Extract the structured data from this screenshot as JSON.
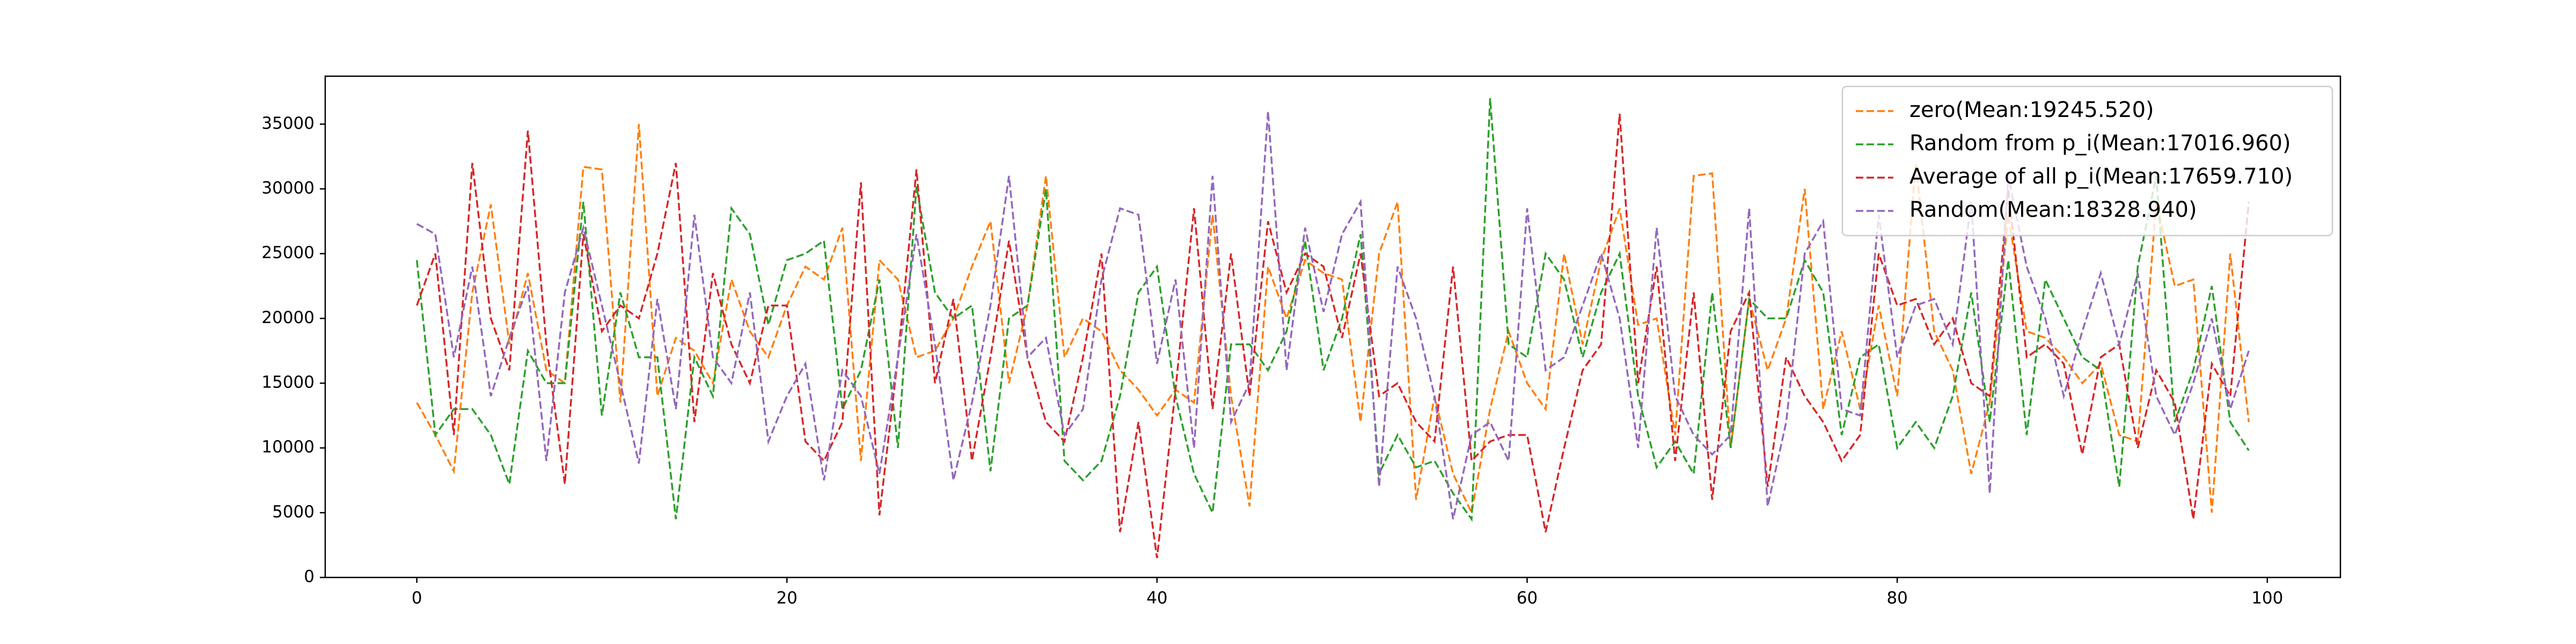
{
  "chart_data": {
    "type": "line",
    "legend": "upper right",
    "line_style": "dashed",
    "x": [
      0,
      1,
      2,
      3,
      4,
      5,
      6,
      7,
      8,
      9,
      10,
      11,
      12,
      13,
      14,
      15,
      16,
      17,
      18,
      19,
      20,
      21,
      22,
      23,
      24,
      25,
      26,
      27,
      28,
      29,
      30,
      31,
      32,
      33,
      34,
      35,
      36,
      37,
      38,
      39,
      40,
      41,
      42,
      43,
      44,
      45,
      46,
      47,
      48,
      49,
      50,
      51,
      52,
      53,
      54,
      55,
      56,
      57,
      58,
      59,
      60,
      61,
      62,
      63,
      64,
      65,
      66,
      67,
      68,
      69,
      70,
      71,
      72,
      73,
      74,
      75,
      76,
      77,
      78,
      79,
      80,
      81,
      82,
      83,
      84,
      85,
      86,
      87,
      88,
      89,
      90,
      91,
      92,
      93,
      94,
      95,
      96,
      97,
      98,
      99
    ],
    "xlim": [
      -4.95,
      103.95
    ],
    "xticks": [
      0,
      20,
      40,
      60,
      80,
      100
    ],
    "ylim": [
      0,
      38700
    ],
    "yticks": [
      0,
      5000,
      10000,
      15000,
      20000,
      25000,
      30000,
      35000
    ],
    "series": [
      {
        "name": "zero(Mean:19245.520)",
        "color": "#ff7f0e",
        "values": [
          13500,
          11000,
          8200,
          22000,
          28800,
          18000,
          23500,
          16000,
          15000,
          31700,
          31500,
          13500,
          35000,
          14000,
          18500,
          17500,
          15000,
          23000,
          19000,
          17000,
          21000,
          24000,
          23000,
          27000,
          9000,
          24500,
          23000,
          17000,
          17500,
          20000,
          24000,
          27500,
          15000,
          21000,
          31000,
          17000,
          20000,
          19000,
          16000,
          14500,
          12500,
          14500,
          13500,
          28000,
          14000,
          5500,
          24000,
          20000,
          24500,
          23500,
          23000,
          12000,
          25000,
          29000,
          6000,
          14000,
          8000,
          5000,
          13000,
          19000,
          15000,
          13000,
          25000,
          18000,
          24500,
          28500,
          19500,
          20000,
          11000,
          31000,
          31200,
          10000,
          21500,
          16000,
          20000,
          30000,
          13000,
          19000,
          13000,
          21000,
          14000,
          32000,
          19000,
          16000,
          8000,
          13500,
          28000,
          19000,
          18500,
          17000,
          15000,
          16500,
          11000,
          10500,
          29000,
          22500,
          23000,
          5000,
          25000,
          12000
        ]
      },
      {
        "name": "Random from p_i(Mean:17016.960)",
        "color": "#2ca02c",
        "values": [
          24500,
          11000,
          13000,
          13000,
          11000,
          7200,
          17500,
          15000,
          15000,
          29000,
          12500,
          22000,
          17000,
          17000,
          4500,
          17000,
          14000,
          28500,
          26500,
          19500,
          24500,
          25000,
          26000,
          13000,
          16000,
          23000,
          10000,
          30200,
          22000,
          20000,
          21000,
          8200,
          20000,
          21000,
          30000,
          9000,
          7500,
          9000,
          14000,
          22000,
          24000,
          14000,
          8000,
          5000,
          18000,
          18000,
          16000,
          19000,
          26000,
          16000,
          20000,
          26500,
          8000,
          11000,
          8500,
          9000,
          6500,
          4500,
          37000,
          18000,
          17000,
          25000,
          23000,
          17000,
          22000,
          25000,
          14000,
          8500,
          10500,
          8000,
          22000,
          10000,
          21500,
          20000,
          20000,
          24500,
          22000,
          11000,
          17000,
          18000,
          10000,
          12000,
          10000,
          14000,
          22000,
          12000,
          24500,
          11000,
          23000,
          20000,
          17000,
          16000,
          7000,
          24000,
          31000,
          12000,
          16000,
          22500,
          12000,
          9800
        ]
      },
      {
        "name": "Average of all p_i(Mean:17659.710)",
        "color": "#d62728",
        "values": [
          21000,
          25000,
          11000,
          32000,
          20000,
          16000,
          34500,
          18000,
          7200,
          26500,
          19000,
          21000,
          20000,
          25000,
          32000,
          12000,
          23500,
          18000,
          15000,
          21000,
          21000,
          10500,
          9000,
          12000,
          30500,
          4800,
          17000,
          31500,
          15000,
          21500,
          9000,
          17000,
          26000,
          17000,
          12000,
          10500,
          17000,
          25000,
          3500,
          12000,
          1500,
          14500,
          28500,
          13000,
          25000,
          14000,
          27500,
          22000,
          25000,
          24000,
          18500,
          25000,
          14000,
          15000,
          12000,
          10500,
          24000,
          9000,
          10500,
          11000,
          11000,
          3500,
          10000,
          16000,
          18000,
          35800,
          15000,
          24000,
          9000,
          22000,
          6000,
          19000,
          22000,
          7000,
          17000,
          14000,
          12000,
          9000,
          11000,
          25000,
          21000,
          21500,
          18000,
          20000,
          15000,
          14000,
          30000,
          17000,
          18000,
          16500,
          9500,
          17000,
          18000,
          10000,
          16000,
          13500,
          4500,
          16500,
          14000,
          29000
        ]
      },
      {
        "name": "Random(Mean:18328.940)",
        "color": "#9467bd",
        "values": [
          27300,
          26500,
          17000,
          24000,
          14000,
          18500,
          22500,
          9000,
          22000,
          27000,
          21000,
          15000,
          8800,
          21500,
          13000,
          28000,
          17000,
          15000,
          22000,
          10500,
          14000,
          16500,
          7500,
          16000,
          14000,
          8000,
          17000,
          26500,
          18000,
          7500,
          13500,
          21000,
          31000,
          17000,
          18500,
          11000,
          13000,
          23000,
          28500,
          28000,
          16500,
          23000,
          10000,
          31000,
          12000,
          15000,
          36000,
          16000,
          27000,
          20500,
          26500,
          29000,
          7000,
          24000,
          20000,
          14000,
          4500,
          11000,
          12000,
          9000,
          28500,
          16000,
          17000,
          21000,
          25000,
          20000,
          10000,
          27000,
          14000,
          11000,
          9500,
          11000,
          28500,
          5500,
          12000,
          25000,
          27500,
          13000,
          12500,
          28000,
          17000,
          21000,
          21500,
          18000,
          29000,
          6500,
          31000,
          24000,
          20000,
          14000,
          19000,
          23500,
          18000,
          23500,
          14000,
          11000,
          15000,
          20000,
          13000,
          17500
        ]
      }
    ]
  }
}
